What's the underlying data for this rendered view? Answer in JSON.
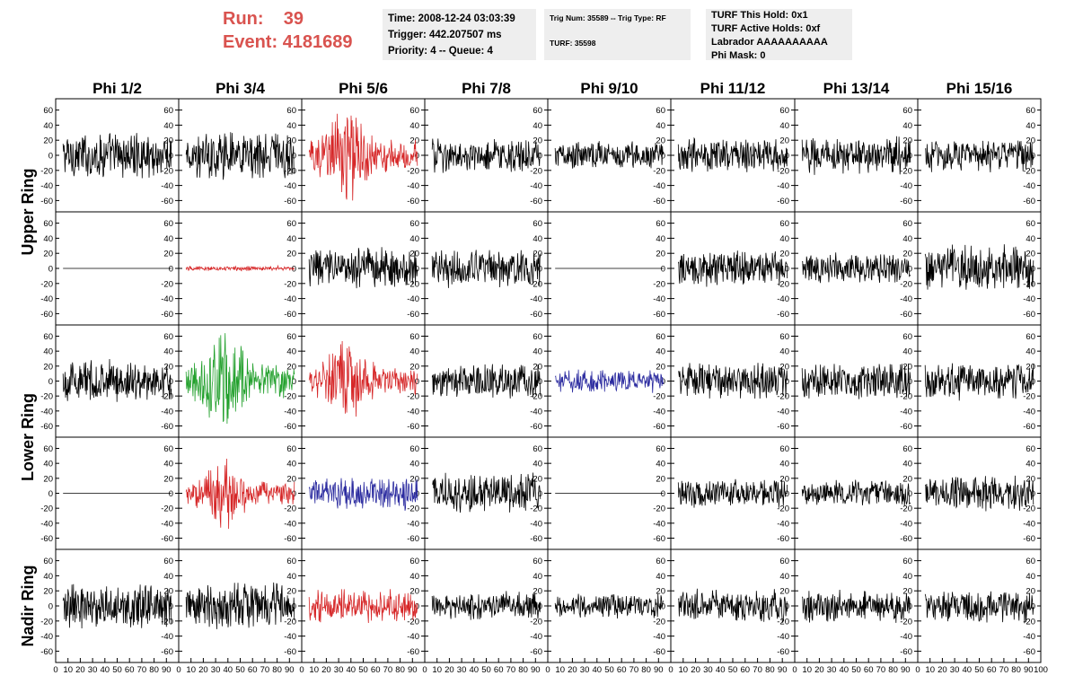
{
  "header": {
    "run_label": "Run:",
    "run_value": "39",
    "event_label": "Event:",
    "event_value": "4181689"
  },
  "info_time": {
    "line1": "Time: 2008-12-24 03:03:39",
    "line2": "Trigger: 442.207507 ms",
    "line3": "Priority: 4 -- Queue: 4"
  },
  "info_trig": {
    "line1": "Trig Num: 35589 -- Trig Type: RF",
    "line2": "TURF: 35598"
  },
  "info_turf": {
    "line1": "TURF This Hold: 0x1",
    "line2": "TURF Active Holds: 0xf",
    "line3": "Labrador AAAAAAAAAA",
    "line4": "Phi Mask: 0"
  },
  "colors": {
    "normal": "#000000",
    "red": "#d62728",
    "green": "#22a02c",
    "blue": "#2c2ca0",
    "accent_text": "#d9534f"
  },
  "chart_data": {
    "type": "line",
    "columns": [
      "Phi 1/2",
      "Phi 3/4",
      "Phi 5/6",
      "Phi 7/8",
      "Phi 9/10",
      "Phi 11/12",
      "Phi 13/14",
      "Phi 15/16"
    ],
    "ring_labels": [
      {
        "label": "Upper Ring",
        "rows": [
          0,
          1
        ]
      },
      {
        "label": "Lower Ring",
        "rows": [
          2,
          3
        ]
      },
      {
        "label": "Nadir Ring",
        "rows": [
          4,
          4
        ]
      }
    ],
    "ylim": [
      -75,
      75
    ],
    "yticks": [
      -60,
      -40,
      -20,
      0,
      20,
      40,
      60
    ],
    "xlim": [
      0,
      100
    ],
    "xticks": [
      0,
      10,
      20,
      30,
      40,
      50,
      60,
      70,
      80,
      90,
      100
    ],
    "panels": [
      [
        {
          "color": "normal",
          "amp": 20
        },
        {
          "color": "normal",
          "amp": 20
        },
        {
          "color": "red",
          "amp": 28,
          "burst": true
        },
        {
          "color": "normal",
          "amp": 14
        },
        {
          "color": "normal",
          "amp": 12
        },
        {
          "color": "normal",
          "amp": 14
        },
        {
          "color": "normal",
          "amp": 16
        },
        {
          "color": "normal",
          "amp": 14
        }
      ],
      [
        {
          "color": "normal",
          "amp": 0
        },
        {
          "color": "red",
          "amp": 2
        },
        {
          "color": "normal",
          "amp": 18
        },
        {
          "color": "normal",
          "amp": 18
        },
        {
          "color": "normal",
          "amp": 0
        },
        {
          "color": "normal",
          "amp": 15
        },
        {
          "color": "normal",
          "amp": 13
        },
        {
          "color": "normal",
          "amp": 20
        }
      ],
      [
        {
          "color": "normal",
          "amp": 18
        },
        {
          "color": "green",
          "amp": 30,
          "burst": true
        },
        {
          "color": "red",
          "amp": 24,
          "burst": true
        },
        {
          "color": "normal",
          "amp": 15
        },
        {
          "color": "blue",
          "amp": 10
        },
        {
          "color": "normal",
          "amp": 16
        },
        {
          "color": "normal",
          "amp": 16
        },
        {
          "color": "normal",
          "amp": 16
        }
      ],
      [
        {
          "color": "normal",
          "amp": 0
        },
        {
          "color": "red",
          "amp": 20,
          "burst": true
        },
        {
          "color": "blue",
          "amp": 14
        },
        {
          "color": "normal",
          "amp": 17
        },
        {
          "color": "normal",
          "amp": 0
        },
        {
          "color": "normal",
          "amp": 12
        },
        {
          "color": "normal",
          "amp": 11
        },
        {
          "color": "normal",
          "amp": 15
        }
      ],
      [
        {
          "color": "normal",
          "amp": 20
        },
        {
          "color": "normal",
          "amp": 20
        },
        {
          "color": "red",
          "amp": 14
        },
        {
          "color": "normal",
          "amp": 12
        },
        {
          "color": "normal",
          "amp": 10
        },
        {
          "color": "normal",
          "amp": 14
        },
        {
          "color": "normal",
          "amp": 14
        },
        {
          "color": "normal",
          "amp": 14
        }
      ]
    ]
  }
}
